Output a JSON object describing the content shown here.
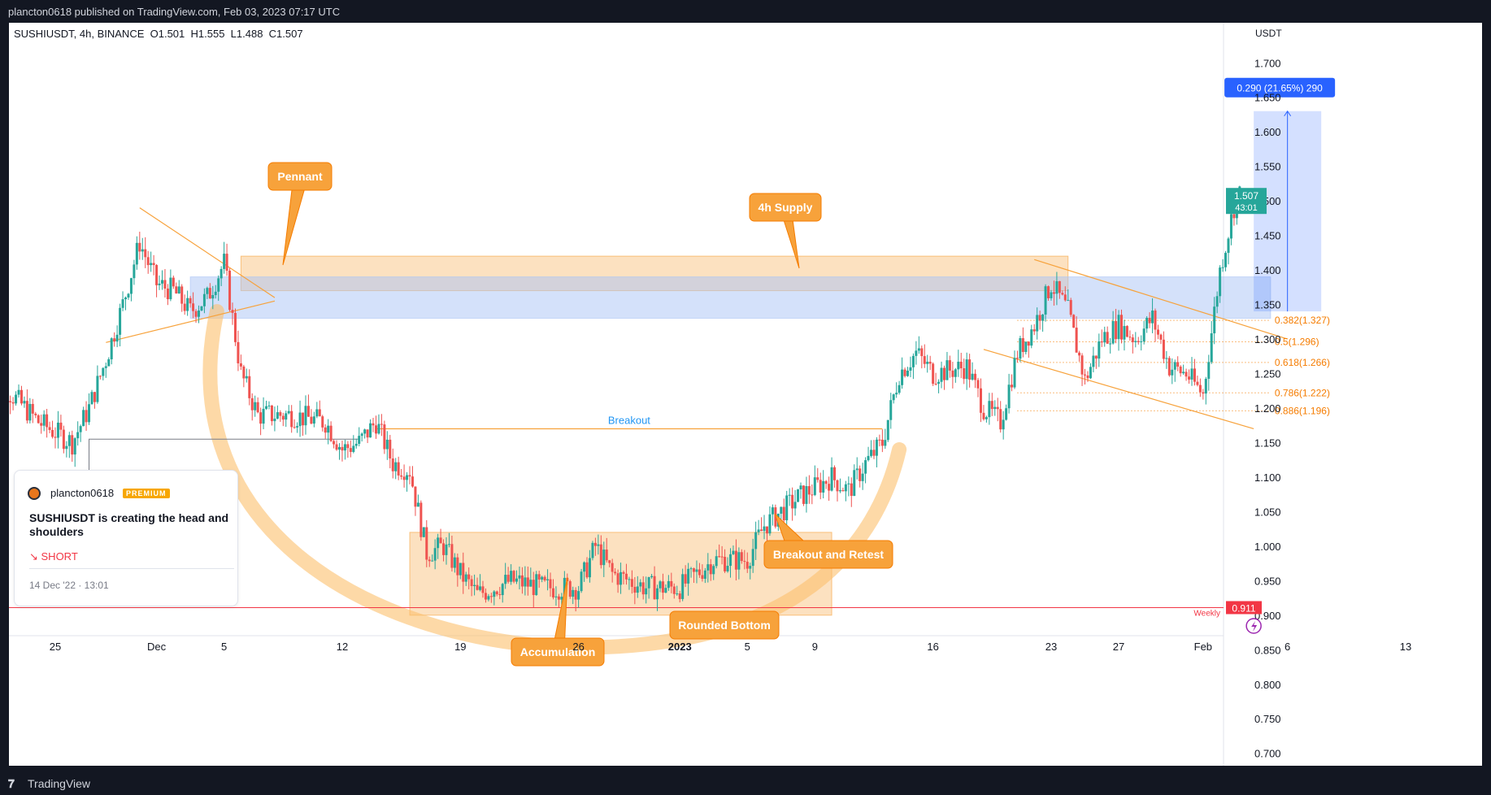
{
  "header": {
    "publish_line": "plancton0618 published on TradingView.com, Feb 03, 2023 07:17 UTC"
  },
  "symbol": {
    "title": "SUSHIUSDT, 4h, BINANCE",
    "open": "O1.501",
    "high": "H1.555",
    "low": "L1.488",
    "close": "C1.507"
  },
  "idea_card": {
    "author": "plancton0618",
    "badge": "PREMIUM",
    "title": "SUSHIUSDT is creating the head and shoulders",
    "direction": "↘ SHORT",
    "date": "14 Dec '22 · 13:01"
  },
  "footer": {
    "brand": "TradingView",
    "logo_icon": "tradingview-logo-icon"
  },
  "colors": {
    "up": "#26a69a",
    "down": "#ef5350",
    "orange": "#f7a23b",
    "blue_zone": "#aac4f5",
    "weekly": "#f23645",
    "accent_blue": "#2962ff",
    "fib": "#f57c00"
  },
  "chart_data": {
    "type": "candlestick",
    "symbol": "SUSHIUSDT",
    "timeframe": "4h",
    "currency_label": "USDT",
    "y_axis": {
      "ticks": [
        1.7,
        1.65,
        1.6,
        1.55,
        1.5,
        1.45,
        1.4,
        1.35,
        1.3,
        1.25,
        1.2,
        1.15,
        1.1,
        1.05,
        1.0,
        0.95,
        0.9,
        0.85,
        0.8,
        0.75,
        0.7
      ],
      "range": [
        0.682,
        1.758
      ]
    },
    "x_axis": {
      "ticks": [
        {
          "label": "25",
          "date": "2022-11-25"
        },
        {
          "label": "Dec",
          "date": "2022-12-01"
        },
        {
          "label": "5",
          "date": "2022-12-05"
        },
        {
          "label": "12",
          "date": "2022-12-12"
        },
        {
          "label": "19",
          "date": "2022-12-19"
        },
        {
          "label": "26",
          "date": "2022-12-26"
        },
        {
          "label": "2023",
          "date": "2023-01-01"
        },
        {
          "label": "5",
          "date": "2023-01-05"
        },
        {
          "label": "9",
          "date": "2023-01-09"
        },
        {
          "label": "16",
          "date": "2023-01-16"
        },
        {
          "label": "23",
          "date": "2023-01-23"
        },
        {
          "label": "27",
          "date": "2023-01-27"
        },
        {
          "label": "Feb",
          "date": "2023-02-01"
        },
        {
          "label": "6",
          "date": "2023-02-06"
        },
        {
          "label": "13",
          "date": "2023-02-13"
        }
      ]
    },
    "price_path": [
      [
        "2022-11-21",
        1.16
      ],
      [
        "2022-11-22",
        1.23
      ],
      [
        "2022-11-24",
        1.18
      ],
      [
        "2022-11-26",
        1.15
      ],
      [
        "2022-11-27",
        1.2
      ],
      [
        "2022-11-28",
        1.27
      ],
      [
        "2022-11-29",
        1.35
      ],
      [
        "2022-11-30",
        1.44
      ],
      [
        "2022-12-01",
        1.38
      ],
      [
        "2022-12-02",
        1.37
      ],
      [
        "2022-12-03",
        1.34
      ],
      [
        "2022-12-04",
        1.36
      ],
      [
        "2022-12-05",
        1.41
      ],
      [
        "2022-12-06",
        1.25
      ],
      [
        "2022-12-07",
        1.19
      ],
      [
        "2022-12-09",
        1.19
      ],
      [
        "2022-12-11",
        1.18
      ],
      [
        "2022-12-12",
        1.14
      ],
      [
        "2022-12-13",
        1.15
      ],
      [
        "2022-12-14",
        1.18
      ],
      [
        "2022-12-15",
        1.12
      ],
      [
        "2022-12-16",
        1.11
      ],
      [
        "2022-12-17",
        0.99
      ],
      [
        "2022-12-18",
        1.0
      ],
      [
        "2022-12-19",
        0.96
      ],
      [
        "2022-12-20",
        0.93
      ],
      [
        "2022-12-22",
        0.95
      ],
      [
        "2022-12-24",
        0.94
      ],
      [
        "2022-12-26",
        0.94
      ],
      [
        "2022-12-27",
        1.0
      ],
      [
        "2022-12-28",
        0.96
      ],
      [
        "2022-12-30",
        0.94
      ],
      [
        "2023-01-01",
        0.94
      ],
      [
        "2023-01-03",
        0.98
      ],
      [
        "2023-01-05",
        0.98
      ],
      [
        "2023-01-06",
        1.03
      ],
      [
        "2023-01-08",
        1.07
      ],
      [
        "2023-01-10",
        1.1
      ],
      [
        "2023-01-11",
        1.08
      ],
      [
        "2023-01-12",
        1.12
      ],
      [
        "2023-01-13",
        1.15
      ],
      [
        "2023-01-14",
        1.25
      ],
      [
        "2023-01-15",
        1.28
      ],
      [
        "2023-01-16",
        1.25
      ],
      [
        "2023-01-18",
        1.26
      ],
      [
        "2023-01-19",
        1.2
      ],
      [
        "2023-01-20",
        1.18
      ],
      [
        "2023-01-21",
        1.28
      ],
      [
        "2023-01-22",
        1.32
      ],
      [
        "2023-01-23",
        1.38
      ],
      [
        "2023-01-24",
        1.34
      ],
      [
        "2023-01-25",
        1.24
      ],
      [
        "2023-01-26",
        1.3
      ],
      [
        "2023-01-27",
        1.32
      ],
      [
        "2023-01-28",
        1.3
      ],
      [
        "2023-01-29",
        1.33
      ],
      [
        "2023-01-30",
        1.26
      ],
      [
        "2023-01-31",
        1.25
      ],
      [
        "2023-02-01",
        1.22
      ],
      [
        "2023-02-02",
        1.4
      ],
      [
        "2023-02-03",
        1.51
      ]
    ],
    "last_price": {
      "value": "1.507",
      "countdown": "43:01"
    },
    "weekly_line": {
      "price": 0.911,
      "label": "Weekly",
      "value_label": "0.911"
    },
    "zones": [
      {
        "name": "4h Supply",
        "from": "2022-12-06",
        "to": "2023-01-24",
        "top": 1.42,
        "bottom": 1.37
      },
      {
        "name": "blue-demand",
        "from": "2022-12-03",
        "to": "2023-02-05",
        "top": 1.39,
        "bottom": 1.33
      },
      {
        "name": "accumulation-box",
        "from": "2022-12-16",
        "to": "2023-01-10",
        "top": 1.02,
        "bottom": 0.9
      }
    ],
    "breakout_line": {
      "label": "Breakout",
      "price": 1.17,
      "from": "2022-12-14",
      "to": "2023-01-13"
    },
    "fib_levels": [
      {
        "ratio": "0.382",
        "price": 1.327,
        "label": "0.382(1.327)"
      },
      {
        "ratio": "0.5",
        "price": 1.296,
        "label": "0.5(1.296)"
      },
      {
        "ratio": "0.618",
        "price": 1.266,
        "label": "0.618(1.266)"
      },
      {
        "ratio": "0.786",
        "price": 1.222,
        "label": "0.786(1.222)"
      },
      {
        "ratio": "0.886",
        "price": 1.196,
        "label": "0.886(1.196)"
      }
    ],
    "measure": {
      "label": "0.290 (21.65%) 290",
      "from_price": 1.34,
      "to_price": 1.63
    },
    "callouts": [
      "Pennant",
      "4h Supply",
      "Breakout and Retest",
      "Rounded Bottom",
      "Accumulation"
    ]
  }
}
